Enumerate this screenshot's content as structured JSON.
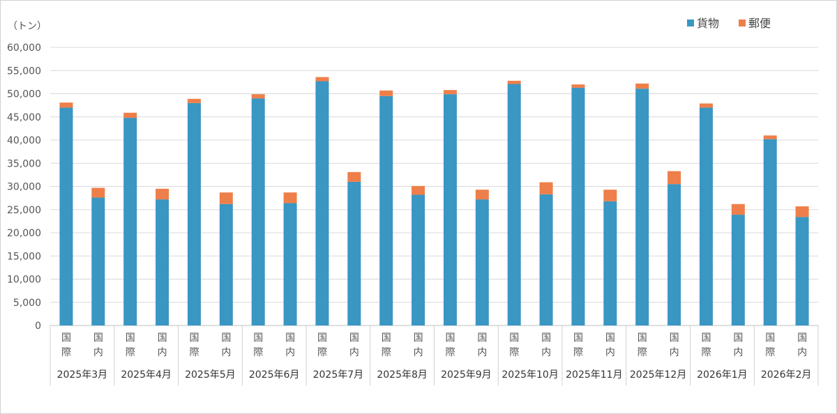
{
  "chart_data": {
    "type": "bar",
    "stacked": true,
    "title": "",
    "unit_label": "（トン）",
    "ylim": [
      0,
      60000
    ],
    "ytick_step": 5000,
    "yticks": [
      "0",
      "5,000",
      "10,000",
      "15,000",
      "20,000",
      "25,000",
      "30,000",
      "35,000",
      "40,000",
      "45,000",
      "50,000",
      "55,000",
      "60,000"
    ],
    "grid": true,
    "legend_position": "top-right",
    "months": [
      "2025年3月",
      "2025年4月",
      "2025年5月",
      "2025年6月",
      "2025年7月",
      "2025年8月",
      "2025年9月",
      "2025年10月",
      "2025年11月",
      "2025年12月",
      "2026年1月",
      "2026年2月"
    ],
    "sub_categories": [
      [
        "国",
        "際"
      ],
      [
        "国",
        "内"
      ]
    ],
    "categories": [
      "2025年3月 国際",
      "2025年3月 国内",
      "2025年4月 国際",
      "2025年4月 国内",
      "2025年5月 国際",
      "2025年5月 国内",
      "2025年6月 国際",
      "2025年6月 国内",
      "2025年7月 国際",
      "2025年7月 国内",
      "2025年8月 国際",
      "2025年8月 国内",
      "2025年9月 国際",
      "2025年9月 国内",
      "2025年10月 国際",
      "2025年10月 国内",
      "2025年11月 国際",
      "2025年11月 国内",
      "2025年12月 国際",
      "2025年12月 国内",
      "2026年1月 国際",
      "2026年1月 国内",
      "2026年2月 国際",
      "2026年2月 国内"
    ],
    "series": [
      {
        "name": "貨物",
        "color": "#3a96c2",
        "values": [
          47000,
          27600,
          44800,
          27200,
          48000,
          26200,
          49000,
          26400,
          52700,
          31000,
          49500,
          28200,
          49900,
          27200,
          52100,
          28300,
          51300,
          26800,
          51100,
          30500,
          47000,
          23900,
          40200,
          23400
        ]
      },
      {
        "name": "郵便",
        "color": "#ee7f4a",
        "values": [
          1100,
          2100,
          1100,
          2300,
          900,
          2500,
          900,
          2300,
          900,
          2100,
          1200,
          1900,
          900,
          2100,
          700,
          2600,
          700,
          2500,
          1100,
          2800,
          900,
          2300,
          800,
          2300
        ]
      }
    ]
  }
}
